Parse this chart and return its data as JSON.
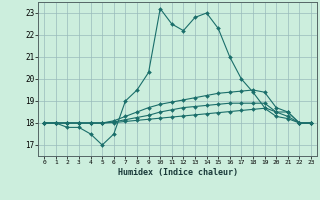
{
  "xlabel": "Humidex (Indice chaleur)",
  "background_color": "#cceedd",
  "grid_color": "#99bbbb",
  "line_color": "#1a6e6a",
  "xlim": [
    -0.5,
    23.5
  ],
  "ylim": [
    16.5,
    23.5
  ],
  "yticks": [
    17,
    18,
    19,
    20,
    21,
    22,
    23
  ],
  "xticks": [
    0,
    1,
    2,
    3,
    4,
    5,
    6,
    7,
    8,
    9,
    10,
    11,
    12,
    13,
    14,
    15,
    16,
    17,
    18,
    19,
    20,
    21,
    22,
    23
  ],
  "line1_x": [
    0,
    1,
    2,
    3,
    4,
    5,
    6,
    7,
    8,
    9,
    10,
    11,
    12,
    13,
    14,
    15,
    16,
    17,
    18,
    19,
    20,
    21,
    22,
    23
  ],
  "line1_y": [
    18.0,
    18.0,
    17.8,
    17.8,
    17.5,
    17.0,
    17.5,
    19.0,
    19.5,
    20.3,
    23.2,
    22.5,
    22.2,
    22.8,
    23.0,
    22.3,
    21.0,
    20.0,
    19.4,
    18.7,
    18.5,
    18.5,
    18.0,
    18.0
  ],
  "line2_x": [
    0,
    1,
    2,
    3,
    4,
    5,
    6,
    7,
    8,
    9,
    10,
    11,
    12,
    13,
    14,
    15,
    16,
    17,
    18,
    19,
    20,
    21,
    22,
    23
  ],
  "line2_y": [
    18.0,
    18.0,
    18.0,
    18.0,
    18.0,
    18.0,
    18.1,
    18.3,
    18.5,
    18.7,
    18.85,
    18.95,
    19.05,
    19.15,
    19.25,
    19.35,
    19.4,
    19.45,
    19.5,
    19.4,
    18.7,
    18.5,
    18.0,
    18.0
  ],
  "line3_x": [
    0,
    1,
    2,
    3,
    4,
    5,
    6,
    7,
    8,
    9,
    10,
    11,
    12,
    13,
    14,
    15,
    16,
    17,
    18,
    19,
    20,
    21,
    22,
    23
  ],
  "line3_y": [
    18.0,
    18.0,
    18.0,
    18.0,
    18.0,
    18.0,
    18.05,
    18.15,
    18.25,
    18.35,
    18.5,
    18.6,
    18.7,
    18.75,
    18.8,
    18.85,
    18.9,
    18.9,
    18.9,
    18.9,
    18.5,
    18.3,
    18.0,
    18.0
  ],
  "line4_x": [
    0,
    1,
    2,
    3,
    4,
    5,
    6,
    7,
    8,
    9,
    10,
    11,
    12,
    13,
    14,
    15,
    16,
    17,
    18,
    19,
    20,
    21,
    22,
    23
  ],
  "line4_y": [
    18.0,
    18.0,
    18.0,
    18.0,
    18.0,
    18.0,
    18.02,
    18.07,
    18.12,
    18.17,
    18.22,
    18.27,
    18.32,
    18.37,
    18.42,
    18.47,
    18.52,
    18.57,
    18.62,
    18.67,
    18.3,
    18.2,
    18.0,
    18.0
  ]
}
